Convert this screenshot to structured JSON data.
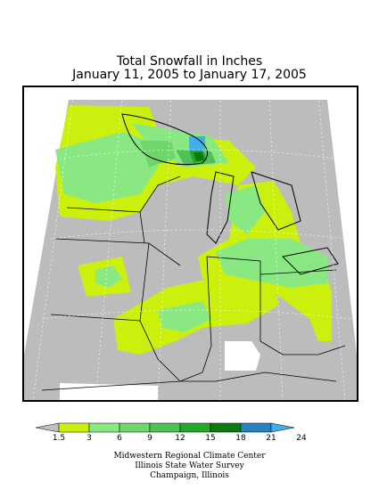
{
  "title": "Total Snowfall in Inches",
  "subtitle": "January 11, 2005 to January 17, 2005",
  "legend": {
    "units": "inches",
    "labels": [
      "1.5",
      "3",
      "6",
      "9",
      "12",
      "15",
      "18",
      "21",
      "24"
    ],
    "colors": [
      "#c0c0c0",
      "#ccf00e",
      "#8ae883",
      "#6ed66b",
      "#4fc05a",
      "#23a827",
      "#0d7a10",
      "#2683c0",
      "#44aee8"
    ]
  },
  "credits": {
    "line1": "Midwestern Regional Climate Center",
    "line2": "Illinois State Water Survey",
    "line3": "Champaign, Illinois"
  },
  "map_colors": {
    "background": "#bcbcbc",
    "no_data": "#ffffff",
    "borders": "#000000",
    "grid": "#ffffff"
  }
}
